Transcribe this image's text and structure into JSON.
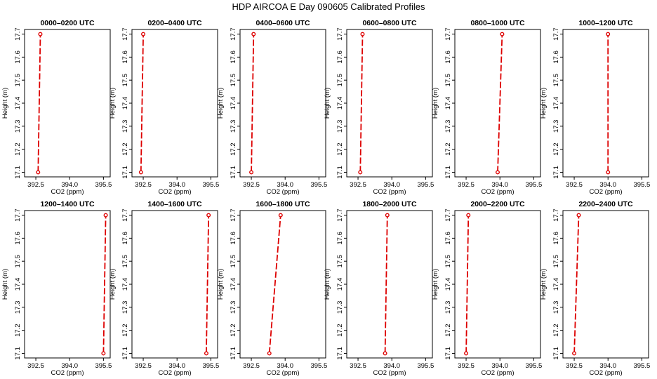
{
  "figure_title": "HDP AIRCOA E  Day 090605  Calibrated Profiles",
  "colors": {
    "line": "#dd0000",
    "marker": "#dd0000",
    "axis": "#000000"
  },
  "chart_data": [
    {
      "type": "line",
      "title": "0000–0200 UTC",
      "xlabel": "CO2 (ppm)",
      "ylabel": "Height (m)",
      "xlim": [
        392.0,
        395.8
      ],
      "ylim": [
        17.08,
        17.72
      ],
      "xticks": [
        "392.5",
        "394.0",
        "395.5"
      ],
      "yticks": [
        "17.1",
        "17.2",
        "17.3",
        "17.4",
        "17.5",
        "17.6",
        "17.7"
      ],
      "points": [
        {
          "x": 392.6,
          "y": 17.1
        },
        {
          "x": 392.7,
          "y": 17.7
        }
      ]
    },
    {
      "type": "line",
      "title": "0200–0400 UTC",
      "xlabel": "CO2 (ppm)",
      "ylabel": "Height (m)",
      "xlim": [
        392.0,
        395.8
      ],
      "ylim": [
        17.08,
        17.72
      ],
      "xticks": [
        "392.5",
        "394.0",
        "395.5"
      ],
      "yticks": [
        "17.1",
        "17.2",
        "17.3",
        "17.4",
        "17.5",
        "17.6",
        "17.7"
      ],
      "points": [
        {
          "x": 392.4,
          "y": 17.1
        },
        {
          "x": 392.5,
          "y": 17.7
        }
      ]
    },
    {
      "type": "line",
      "title": "0400–0600 UTC",
      "xlabel": "CO2 (ppm)",
      "ylabel": "Height (m)",
      "xlim": [
        392.0,
        395.8
      ],
      "ylim": [
        17.08,
        17.72
      ],
      "xticks": [
        "392.5",
        "394.0",
        "395.5"
      ],
      "yticks": [
        "17.1",
        "17.2",
        "17.3",
        "17.4",
        "17.5",
        "17.6",
        "17.7"
      ],
      "points": [
        {
          "x": 392.5,
          "y": 17.1
        },
        {
          "x": 392.6,
          "y": 17.7
        }
      ]
    },
    {
      "type": "line",
      "title": "0600–0800 UTC",
      "xlabel": "CO2 (ppm)",
      "ylabel": "Height (m)",
      "xlim": [
        392.0,
        395.8
      ],
      "ylim": [
        17.08,
        17.72
      ],
      "xticks": [
        "392.5",
        "394.0",
        "395.5"
      ],
      "yticks": [
        "17.1",
        "17.2",
        "17.3",
        "17.4",
        "17.5",
        "17.6",
        "17.7"
      ],
      "points": [
        {
          "x": 392.6,
          "y": 17.1
        },
        {
          "x": 392.7,
          "y": 17.7
        }
      ]
    },
    {
      "type": "line",
      "title": "0800–1000 UTC",
      "xlabel": "CO2 (ppm)",
      "ylabel": "Height (m)",
      "xlim": [
        392.0,
        395.8
      ],
      "ylim": [
        17.08,
        17.72
      ],
      "xticks": [
        "392.5",
        "394.0",
        "395.5"
      ],
      "yticks": [
        "17.1",
        "17.2",
        "17.3",
        "17.4",
        "17.5",
        "17.6",
        "17.7"
      ],
      "points": [
        {
          "x": 393.9,
          "y": 17.1
        },
        {
          "x": 394.1,
          "y": 17.7
        }
      ]
    },
    {
      "type": "line",
      "title": "1000–1200 UTC",
      "xlabel": "CO2 (ppm)",
      "ylabel": "Height (m)",
      "xlim": [
        392.0,
        395.8
      ],
      "ylim": [
        17.08,
        17.72
      ],
      "xticks": [
        "392.5",
        "394.0",
        "395.5"
      ],
      "yticks": [
        "17.1",
        "17.2",
        "17.3",
        "17.4",
        "17.5",
        "17.6",
        "17.7"
      ],
      "points": [
        {
          "x": 394.0,
          "y": 17.1
        },
        {
          "x": 394.0,
          "y": 17.7
        }
      ]
    },
    {
      "type": "line",
      "title": "1200–1400 UTC",
      "xlabel": "CO2 (ppm)",
      "ylabel": "Height (m)",
      "xlim": [
        392.0,
        395.8
      ],
      "ylim": [
        17.08,
        17.72
      ],
      "xticks": [
        "392.5",
        "394.0",
        "395.5"
      ],
      "yticks": [
        "17.1",
        "17.2",
        "17.3",
        "17.4",
        "17.5",
        "17.6",
        "17.7"
      ],
      "points": [
        {
          "x": 395.5,
          "y": 17.1
        },
        {
          "x": 395.6,
          "y": 17.7
        }
      ]
    },
    {
      "type": "line",
      "title": "1400–1600 UTC",
      "xlabel": "CO2 (ppm)",
      "ylabel": "Height (m)",
      "xlim": [
        392.0,
        395.8
      ],
      "ylim": [
        17.08,
        17.72
      ],
      "xticks": [
        "392.5",
        "394.0",
        "395.5"
      ],
      "yticks": [
        "17.1",
        "17.2",
        "17.3",
        "17.4",
        "17.5",
        "17.6",
        "17.7"
      ],
      "points": [
        {
          "x": 395.3,
          "y": 17.1
        },
        {
          "x": 395.4,
          "y": 17.7
        }
      ]
    },
    {
      "type": "line",
      "title": "1600–1800 UTC",
      "xlabel": "CO2 (ppm)",
      "ylabel": "Height (m)",
      "xlim": [
        392.0,
        395.8
      ],
      "ylim": [
        17.08,
        17.72
      ],
      "xticks": [
        "392.5",
        "394.0",
        "395.5"
      ],
      "yticks": [
        "17.1",
        "17.2",
        "17.3",
        "17.4",
        "17.5",
        "17.6",
        "17.7"
      ],
      "points": [
        {
          "x": 393.3,
          "y": 17.1
        },
        {
          "x": 393.8,
          "y": 17.7
        }
      ]
    },
    {
      "type": "line",
      "title": "1800–2000 UTC",
      "xlabel": "CO2 (ppm)",
      "ylabel": "Height (m)",
      "xlim": [
        392.0,
        395.8
      ],
      "ylim": [
        17.08,
        17.72
      ],
      "xticks": [
        "392.5",
        "394.0",
        "395.5"
      ],
      "yticks": [
        "17.1",
        "17.2",
        "17.3",
        "17.4",
        "17.5",
        "17.6",
        "17.7"
      ],
      "points": [
        {
          "x": 393.7,
          "y": 17.1
        },
        {
          "x": 393.8,
          "y": 17.7
        }
      ]
    },
    {
      "type": "line",
      "title": "2000–2200 UTC",
      "xlabel": "CO2 (ppm)",
      "ylabel": "Height (m)",
      "xlim": [
        392.0,
        395.8
      ],
      "ylim": [
        17.08,
        17.72
      ],
      "xticks": [
        "392.5",
        "394.0",
        "395.5"
      ],
      "yticks": [
        "17.1",
        "17.2",
        "17.3",
        "17.4",
        "17.5",
        "17.6",
        "17.7"
      ],
      "points": [
        {
          "x": 392.5,
          "y": 17.1
        },
        {
          "x": 392.6,
          "y": 17.7
        }
      ]
    },
    {
      "type": "line",
      "title": "2200–2400 UTC",
      "xlabel": "CO2 (ppm)",
      "ylabel": "Height (m)",
      "xlim": [
        392.0,
        395.8
      ],
      "ylim": [
        17.08,
        17.72
      ],
      "xticks": [
        "392.5",
        "394.0",
        "395.5"
      ],
      "yticks": [
        "17.1",
        "17.2",
        "17.3",
        "17.4",
        "17.5",
        "17.6",
        "17.7"
      ],
      "points": [
        {
          "x": 392.5,
          "y": 17.1
        },
        {
          "x": 392.7,
          "y": 17.7
        }
      ]
    }
  ]
}
